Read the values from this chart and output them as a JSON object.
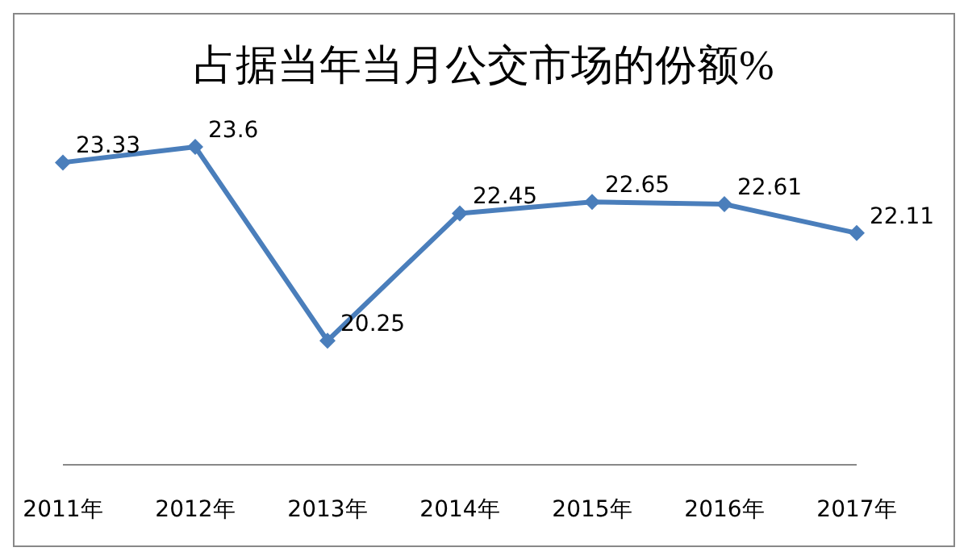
{
  "chart_data": {
    "type": "line",
    "title": "占据当年当月公交市场的份额%",
    "categories": [
      "2011年",
      "2012年",
      "2013年",
      "2014年",
      "2015年",
      "2016年",
      "2017年"
    ],
    "series": [
      {
        "color": "#4a7ebb",
        "values": [
          23.33,
          23.6,
          20.25,
          22.45,
          22.65,
          22.61,
          22.11
        ]
      }
    ],
    "data_labels": true,
    "marker": "diamond",
    "grid": false,
    "legend": false
  }
}
